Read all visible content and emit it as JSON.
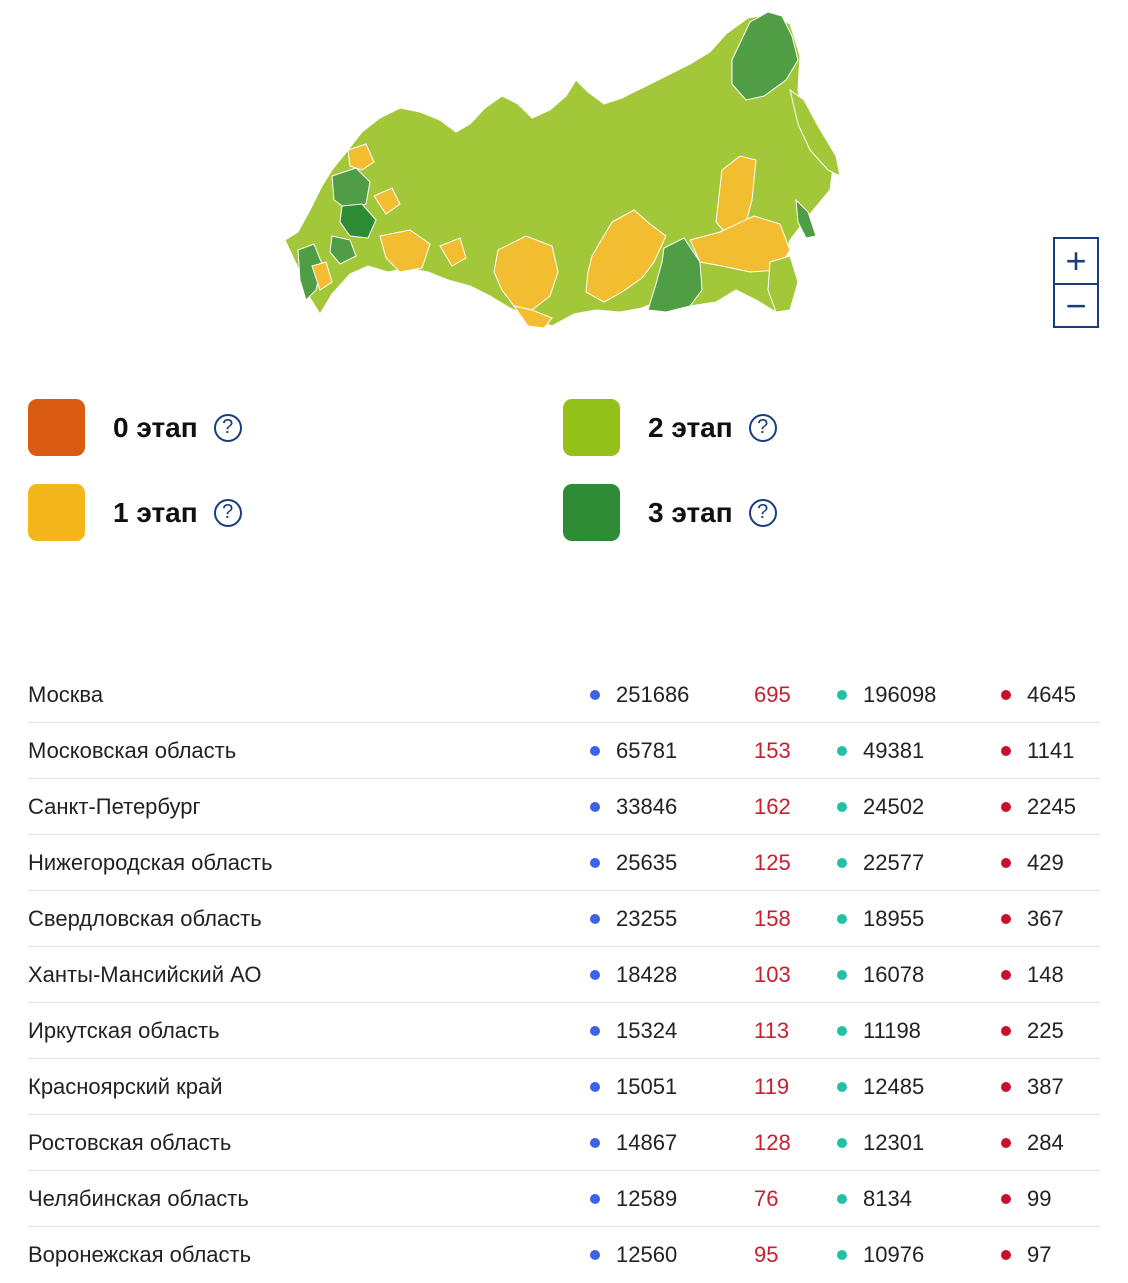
{
  "legend": [
    {
      "label": "0 этап",
      "color": "#d95c12"
    },
    {
      "label": "1 этап",
      "color": "#f3b71b"
    },
    {
      "label": "2 этап",
      "color": "#93c11a"
    },
    {
      "label": "3 этап",
      "color": "#2e8b36"
    }
  ],
  "legend_help": "?",
  "zoom": {
    "in": "+",
    "out": "−"
  },
  "regions": [
    {
      "name": "Москва",
      "total": "251686",
      "new": "695",
      "recovered": "196098",
      "deaths": "4645"
    },
    {
      "name": "Московская область",
      "total": "65781",
      "new": "153",
      "recovered": "49381",
      "deaths": "1141"
    },
    {
      "name": "Санкт-Петербург",
      "total": "33846",
      "new": "162",
      "recovered": "24502",
      "deaths": "2245"
    },
    {
      "name": "Нижегородская область",
      "total": "25635",
      "new": "125",
      "recovered": "22577",
      "deaths": "429"
    },
    {
      "name": "Свердловская область",
      "total": "23255",
      "new": "158",
      "recovered": "18955",
      "deaths": "367"
    },
    {
      "name": "Ханты-Мансийский АО",
      "total": "18428",
      "new": "103",
      "recovered": "16078",
      "deaths": "148"
    },
    {
      "name": "Иркутская область",
      "total": "15324",
      "new": "113",
      "recovered": "11198",
      "deaths": "225"
    },
    {
      "name": "Красноярский край",
      "total": "15051",
      "new": "119",
      "recovered": "12485",
      "deaths": "387"
    },
    {
      "name": "Ростовская область",
      "total": "14867",
      "new": "128",
      "recovered": "12301",
      "deaths": "284"
    },
    {
      "name": "Челябинская область",
      "total": "12589",
      "new": "76",
      "recovered": "8134",
      "deaths": "99"
    },
    {
      "name": "Воронежская область",
      "total": "12560",
      "new": "95",
      "recovered": "10976",
      "deaths": "97"
    }
  ]
}
